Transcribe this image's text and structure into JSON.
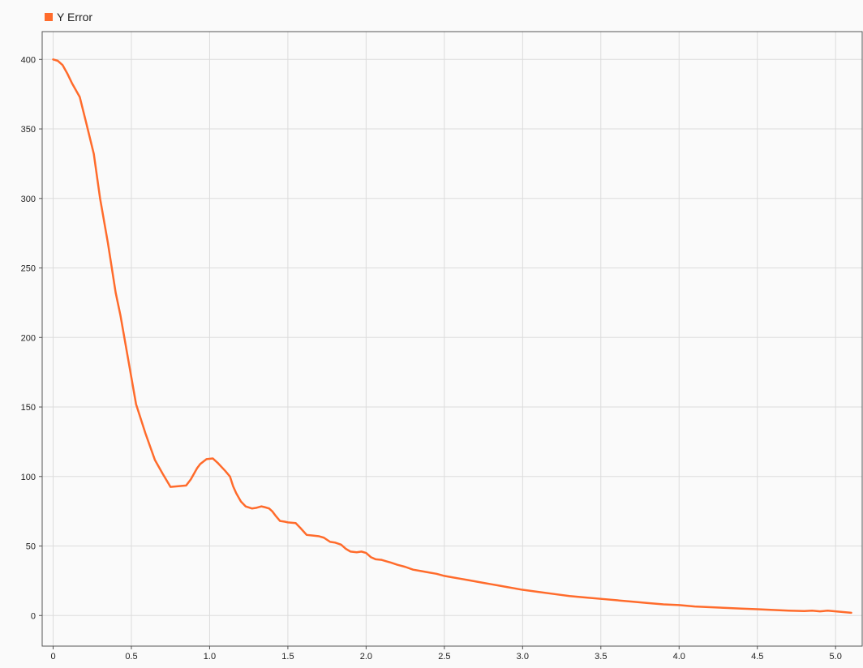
{
  "legend": {
    "label": "Y Error",
    "color": "#ff6b2b"
  },
  "chart_data": {
    "type": "line",
    "title": "",
    "xlabel": "",
    "ylabel": "",
    "xlim": [
      -0.07,
      5.17
    ],
    "ylim": [
      -22,
      420
    ],
    "xticks": [
      0,
      0.5,
      1.0,
      1.5,
      2.0,
      2.5,
      3.0,
      3.5,
      4.0,
      4.5,
      5.0
    ],
    "xtick_labels": [
      "0",
      "0.5",
      "1.0",
      "1.5",
      "2.0",
      "2.5",
      "3.0",
      "3.5",
      "4.0",
      "4.5",
      "5.0"
    ],
    "yticks": [
      0,
      50,
      100,
      150,
      200,
      250,
      300,
      350,
      400
    ],
    "ytick_labels": [
      "0",
      "50",
      "100",
      "150",
      "200",
      "250",
      "300",
      "350",
      "400"
    ],
    "grid": true,
    "legend_position": "top-left",
    "series": [
      {
        "name": "Y Error",
        "color": "#ff6b2b",
        "x": [
          0,
          0.03,
          0.06,
          0.09,
          0.12,
          0.17,
          0.21,
          0.26,
          0.3,
          0.35,
          0.4,
          0.43,
          0.48,
          0.53,
          0.59,
          0.65,
          0.7,
          0.75,
          0.8,
          0.85,
          0.88,
          0.92,
          0.94,
          0.98,
          1.02,
          1.05,
          1.1,
          1.13,
          1.15,
          1.17,
          1.2,
          1.23,
          1.27,
          1.3,
          1.33,
          1.35,
          1.38,
          1.4,
          1.42,
          1.45,
          1.48,
          1.5,
          1.55,
          1.58,
          1.62,
          1.66,
          1.7,
          1.73,
          1.77,
          1.8,
          1.84,
          1.87,
          1.9,
          1.94,
          1.97,
          2.0,
          2.03,
          2.06,
          2.1,
          2.13,
          2.16,
          2.2,
          2.25,
          2.3,
          2.35,
          2.4,
          2.45,
          2.5,
          2.55,
          2.6,
          2.65,
          2.7,
          2.75,
          2.8,
          2.85,
          2.9,
          2.95,
          3.0,
          3.1,
          3.2,
          3.3,
          3.4,
          3.5,
          3.6,
          3.7,
          3.8,
          3.9,
          4.0,
          4.1,
          4.2,
          4.3,
          4.4,
          4.5,
          4.6,
          4.7,
          4.8,
          4.85,
          4.9,
          4.95,
          5.0,
          5.05,
          5.1
        ],
        "y": [
          400,
          399,
          396,
          390,
          383,
          373,
          355,
          332,
          300,
          268,
          232,
          216,
          184,
          152,
          131,
          112,
          102,
          92.5,
          93,
          93.5,
          98,
          106,
          109,
          112.5,
          113,
          110,
          104,
          100,
          93,
          88,
          82,
          78.5,
          77,
          77.5,
          78.5,
          78,
          77,
          75,
          72,
          68,
          67.5,
          67,
          66.5,
          63,
          58,
          57.5,
          57,
          56,
          53,
          52.5,
          51,
          48,
          46,
          45.5,
          46,
          45,
          42,
          40.5,
          40,
          39,
          38,
          36.5,
          35,
          33,
          32,
          31,
          30,
          28.5,
          27.5,
          26.5,
          25.5,
          24.5,
          23.5,
          22.5,
          21.5,
          20.5,
          19.5,
          18.5,
          17,
          15.5,
          14,
          13,
          12,
          11,
          10,
          9,
          8,
          7.5,
          6.5,
          6,
          5.5,
          5,
          4.5,
          4,
          3.5,
          3.2,
          3.5,
          3,
          3.5,
          3,
          2.5,
          2
        ]
      }
    ]
  }
}
